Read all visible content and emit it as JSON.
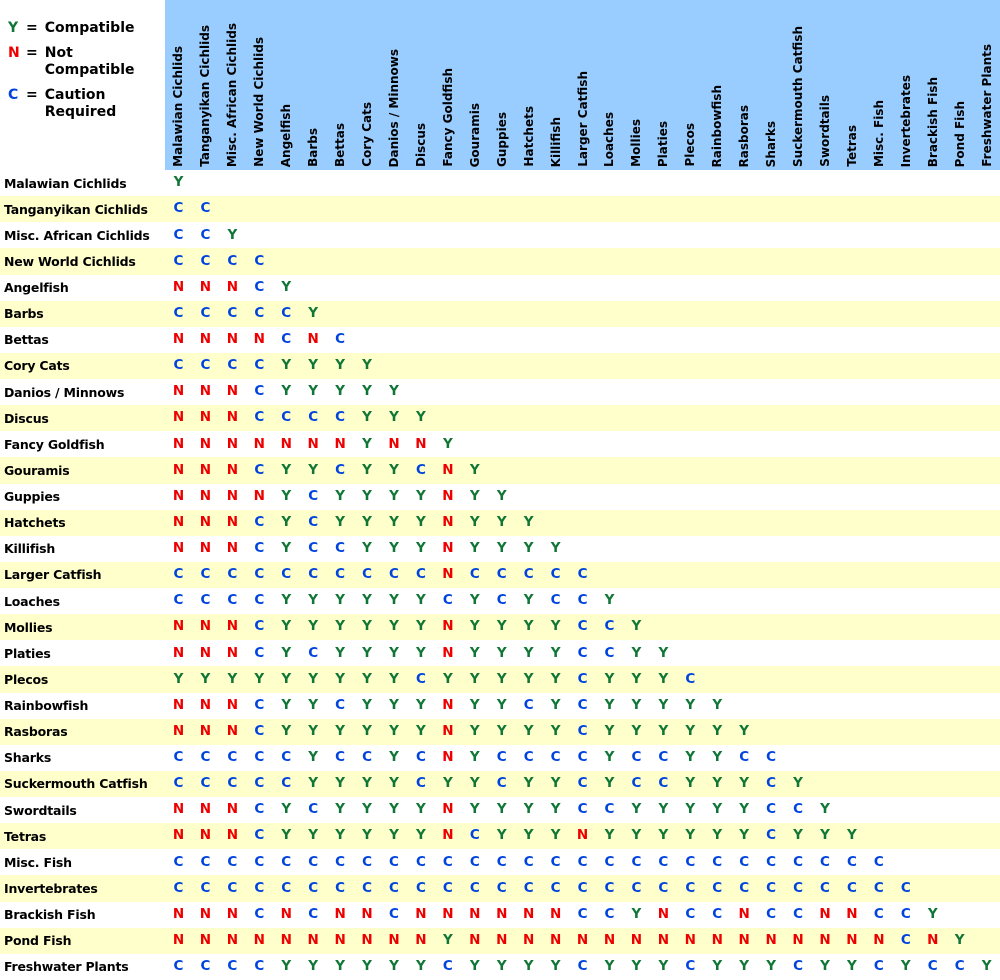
{
  "legend": {
    "equals": "=",
    "items": [
      {
        "symbol": "Y",
        "label": "Compatible"
      },
      {
        "symbol": "N",
        "label": "Not Compatible"
      },
      {
        "symbol": "C",
        "label": "Caution Required"
      }
    ]
  },
  "colors": {
    "Y": "#107636",
    "N": "#EE0000",
    "C": "#0044DD",
    "header_bg": "#99CCFF",
    "row_alt_bg": "#FFFFCC"
  },
  "chart_data": {
    "type": "table",
    "description_visible_text_only": "Triangular fish compatibility matrix; rows and columns share the same species list; cell letters mean Y=Compatible, N=Not Compatible, C=Caution Required",
    "value_meanings": {
      "Y": "Compatible",
      "N": "Not Compatible",
      "C": "Caution Required"
    },
    "species": [
      "Malawian Cichlids",
      "Tanganyikan Cichlids",
      "Misc. African Cichlids",
      "New World Cichlids",
      "Angelfish",
      "Barbs",
      "Bettas",
      "Cory Cats",
      "Danios / Minnows",
      "Discus",
      "Fancy Goldfish",
      "Gouramis",
      "Guppies",
      "Hatchets",
      "Killifish",
      "Larger Catfish",
      "Loaches",
      "Mollies",
      "Platies",
      "Plecos",
      "Rainbowfish",
      "Rasboras",
      "Sharks",
      "Suckermouth Catfish",
      "Swordtails",
      "Tetras",
      "Misc. Fish",
      "Invertebrates",
      "Brackish Fish",
      "Pond Fish",
      "Freshwater Plants"
    ],
    "matrix": [
      "Y",
      "CC",
      "CCY",
      "CCCC",
      "NNNCY",
      "CCCCCY",
      "NNNNCNC",
      "CCCCYYYY",
      "NNNCYYYYY",
      "NNNCCCCYYY",
      "NNNNNNNYNNY",
      "NNNCYYCYYCNY",
      "NNNNYCYYYYNYY",
      "NNNCYCYYYYNYYY",
      "NNNCYCCYYYNYYYY",
      "CCCCCCCCCCNCCCCC",
      "CCCCYYYYYYCYCYCCY",
      "NNNCYYYYYYNYYYYCCY",
      "NNNCYCYYYYNYYYYCCYY",
      "YYYYYYYYYCYYYYYCYYYC",
      "NNNCYYCYYYNYYCYCYYYYY",
      "NNNCYYYYYYNYYYYCYYYYYY",
      "CCCCCYCCYCNYCCCCYCCYYCC",
      "CCCCCYYYYCYYCYYCYCCYYYCY",
      "NNNCYCYYYYNYYYYCCYYYYYCCY",
      "NNNCYYYYYYNCYYYNYYYYYYCYYY",
      "CCCCCCCCCCCCCCCCCCCCCCCCCCC",
      "CCCCCCCCCCCCCCCCCCCCCCCCCCCC",
      "NNNCNCNNCNNNNNNCCYNCCNCCNNCCY",
      "NNNNNNNNNNYNNNNNNNNNNNNNNNNCNY",
      "CCCCYYYYYYCYYYYCYYYCYYYCYYCYCCY"
    ]
  }
}
